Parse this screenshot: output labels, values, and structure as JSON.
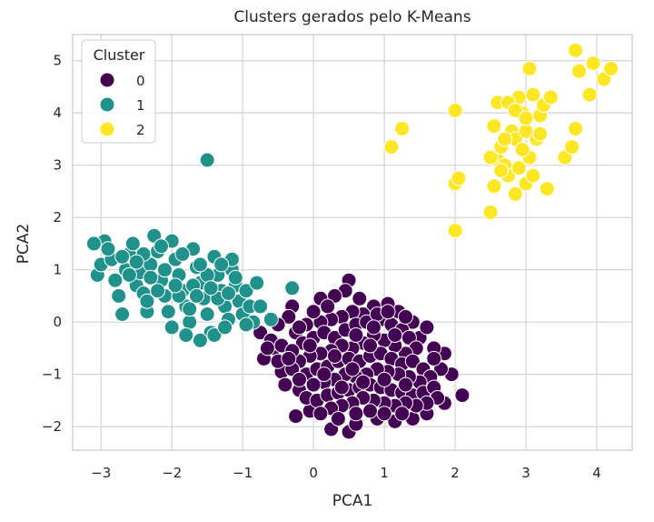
{
  "chart_data": {
    "type": "scatter",
    "title": "Clusters gerados pelo K-Means",
    "xlabel": "PCA1",
    "ylabel": "PCA2",
    "xlim": [
      -3.4,
      4.5
    ],
    "ylim": [
      -2.45,
      5.5
    ],
    "xticks": [
      -3,
      -2,
      -1,
      0,
      1,
      2,
      3,
      4
    ],
    "yticks": [
      -2,
      -1,
      0,
      1,
      2,
      3,
      4,
      5
    ],
    "xtick_labels": [
      "−3",
      "−2",
      "−1",
      "0",
      "1",
      "2",
      "3",
      "4"
    ],
    "ytick_labels": [
      "−2",
      "−1",
      "0",
      "1",
      "2",
      "3",
      "4",
      "5"
    ],
    "grid": true,
    "legend": {
      "title": "Cluster",
      "location": "upper-left",
      "entries": [
        "0",
        "1",
        "2"
      ]
    },
    "colors": {
      "0": "#440154",
      "1": "#21918c",
      "2": "#fde725",
      "grid": "#d3d3d3",
      "frame": "#cccccc"
    },
    "series": [
      {
        "name": "0",
        "points": [
          [
            0.5,
            0.8
          ],
          [
            0.45,
            0.6
          ],
          [
            0.3,
            0.5
          ],
          [
            0.1,
            0.45
          ],
          [
            -0.3,
            0.3
          ],
          [
            -0.35,
            0.1
          ],
          [
            -0.5,
            -0.05
          ],
          [
            -0.55,
            -0.5
          ],
          [
            -0.7,
            -0.7
          ],
          [
            -0.45,
            -0.95
          ],
          [
            -0.4,
            -1.2
          ],
          [
            -0.2,
            -1.3
          ],
          [
            -0.25,
            -1.8
          ],
          [
            -0.05,
            -1.7
          ],
          [
            0.25,
            -2.05
          ],
          [
            0.5,
            -2.1
          ],
          [
            0.6,
            -1.95
          ],
          [
            0.9,
            -1.85
          ],
          [
            1.15,
            -1.9
          ],
          [
            1.4,
            -1.85
          ],
          [
            1.6,
            -1.75
          ],
          [
            1.85,
            -1.55
          ],
          [
            2.1,
            -1.4
          ],
          [
            1.95,
            -1.0
          ],
          [
            1.8,
            -0.9
          ],
          [
            1.85,
            -0.6
          ],
          [
            1.7,
            -0.5
          ],
          [
            1.5,
            -0.3
          ],
          [
            1.6,
            -0.1
          ],
          [
            1.4,
            0.0
          ],
          [
            1.2,
            0.2
          ],
          [
            1.05,
            0.35
          ],
          [
            0.85,
            0.3
          ],
          [
            0.7,
            0.15
          ],
          [
            0.55,
            0.2
          ],
          [
            0.4,
            0.1
          ],
          [
            0.25,
            0.05
          ],
          [
            0.1,
            0.0
          ],
          [
            -0.1,
            -0.05
          ],
          [
            -0.25,
            -0.2
          ],
          [
            -0.15,
            -0.4
          ],
          [
            0.0,
            -0.3
          ],
          [
            0.15,
            -0.2
          ],
          [
            0.3,
            -0.3
          ],
          [
            0.45,
            -0.15
          ],
          [
            0.6,
            -0.05
          ],
          [
            0.75,
            0.0
          ],
          [
            0.95,
            0.05
          ],
          [
            1.1,
            -0.05
          ],
          [
            1.25,
            -0.15
          ],
          [
            1.35,
            -0.3
          ],
          [
            1.45,
            -0.5
          ],
          [
            1.3,
            -0.6
          ],
          [
            1.15,
            -0.45
          ],
          [
            1.0,
            -0.35
          ],
          [
            0.85,
            -0.25
          ],
          [
            0.7,
            -0.4
          ],
          [
            0.55,
            -0.5
          ],
          [
            0.4,
            -0.45
          ],
          [
            0.25,
            -0.55
          ],
          [
            0.1,
            -0.6
          ],
          [
            -0.05,
            -0.65
          ],
          [
            -0.2,
            -0.75
          ],
          [
            -0.3,
            -0.9
          ],
          [
            -0.1,
            -1.0
          ],
          [
            0.05,
            -0.9
          ],
          [
            0.2,
            -0.85
          ],
          [
            0.35,
            -0.75
          ],
          [
            0.5,
            -0.7
          ],
          [
            0.65,
            -0.75
          ],
          [
            0.8,
            -0.65
          ],
          [
            0.95,
            -0.6
          ],
          [
            1.1,
            -0.7
          ],
          [
            1.25,
            -0.8
          ],
          [
            1.4,
            -0.75
          ],
          [
            1.55,
            -0.9
          ],
          [
            1.65,
            -1.05
          ],
          [
            1.5,
            -1.15
          ],
          [
            1.35,
            -1.05
          ],
          [
            1.2,
            -1.0
          ],
          [
            1.05,
            -0.95
          ],
          [
            0.9,
            -0.9
          ],
          [
            0.75,
            -1.0
          ],
          [
            0.6,
            -1.05
          ],
          [
            0.45,
            -1.0
          ],
          [
            0.3,
            -1.1
          ],
          [
            0.15,
            -1.15
          ],
          [
            0.0,
            -1.2
          ],
          [
            -0.1,
            -1.45
          ],
          [
            0.05,
            -1.5
          ],
          [
            0.2,
            -1.4
          ],
          [
            0.35,
            -1.35
          ],
          [
            0.5,
            -1.3
          ],
          [
            0.65,
            -1.25
          ],
          [
            0.8,
            -1.2
          ],
          [
            0.95,
            -1.25
          ],
          [
            1.1,
            -1.3
          ],
          [
            1.25,
            -1.35
          ],
          [
            1.4,
            -1.4
          ],
          [
            1.55,
            -1.35
          ],
          [
            1.7,
            -1.25
          ],
          [
            1.75,
            -1.45
          ],
          [
            1.6,
            -1.55
          ],
          [
            1.45,
            -1.6
          ],
          [
            1.3,
            -1.55
          ],
          [
            1.15,
            -1.6
          ],
          [
            1.0,
            -1.55
          ],
          [
            0.85,
            -1.5
          ],
          [
            0.7,
            -1.45
          ],
          [
            0.55,
            -1.55
          ],
          [
            0.4,
            -1.6
          ],
          [
            0.25,
            -1.65
          ],
          [
            0.1,
            -1.75
          ],
          [
            0.35,
            -1.85
          ],
          [
            0.6,
            -1.75
          ],
          [
            0.8,
            -1.7
          ],
          [
            1.0,
            -1.75
          ],
          [
            1.25,
            -1.75
          ],
          [
            -0.75,
            -0.2
          ],
          [
            -0.6,
            -0.35
          ],
          [
            -0.45,
            -0.45
          ],
          [
            -0.3,
            -0.55
          ],
          [
            -0.5,
            -0.75
          ],
          [
            -0.65,
            -0.5
          ],
          [
            -0.2,
            -0.1
          ],
          [
            0.0,
            0.2
          ],
          [
            0.2,
            0.3
          ],
          [
            0.65,
            0.45
          ],
          [
            0.9,
            0.15
          ],
          [
            1.3,
            0.1
          ],
          [
            1.05,
            0.2
          ],
          [
            0.3,
            -0.65
          ],
          [
            0.55,
            -0.9
          ],
          [
            0.8,
            -0.45
          ],
          [
            1.15,
            -0.25
          ],
          [
            -0.05,
            -0.45
          ],
          [
            0.15,
            -1.0
          ],
          [
            0.4,
            -1.25
          ],
          [
            0.7,
            -1.15
          ],
          [
            1.0,
            -1.1
          ],
          [
            1.3,
            -1.2
          ],
          [
            -0.2,
            -1.1
          ],
          [
            -0.35,
            -0.7
          ],
          [
            0.85,
            -0.1
          ],
          [
            0.6,
            -0.25
          ],
          [
            1.7,
            -0.7
          ]
        ]
      },
      {
        "name": "1",
        "points": [
          [
            -1.5,
            3.1
          ],
          [
            -3.05,
            0.9
          ],
          [
            -3.0,
            1.1
          ],
          [
            -2.95,
            1.55
          ],
          [
            -2.85,
            1.2
          ],
          [
            -2.8,
            0.8
          ],
          [
            -2.75,
            0.5
          ],
          [
            -2.7,
            0.15
          ],
          [
            -2.65,
            1.0
          ],
          [
            -2.6,
            1.3
          ],
          [
            -2.55,
            1.5
          ],
          [
            -2.5,
            0.7
          ],
          [
            -2.45,
            0.95
          ],
          [
            -2.4,
            0.55
          ],
          [
            -2.35,
            0.2
          ],
          [
            -2.3,
            1.1
          ],
          [
            -2.25,
            1.65
          ],
          [
            -2.2,
            1.35
          ],
          [
            -2.15,
            0.8
          ],
          [
            -2.1,
            0.5
          ],
          [
            -2.05,
            0.2
          ],
          [
            -2.0,
            1.55
          ],
          [
            -1.95,
            1.2
          ],
          [
            -1.9,
            0.9
          ],
          [
            -1.85,
            0.6
          ],
          [
            -1.8,
            0.3
          ],
          [
            -1.75,
            0.0
          ],
          [
            -1.7,
            1.4
          ],
          [
            -1.65,
            1.05
          ],
          [
            -1.6,
            0.75
          ],
          [
            -1.55,
            0.45
          ],
          [
            -1.5,
            0.15
          ],
          [
            -1.45,
            -0.2
          ],
          [
            -1.4,
            1.25
          ],
          [
            -1.35,
            0.9
          ],
          [
            -1.3,
            0.6
          ],
          [
            -1.25,
            0.3
          ],
          [
            -1.2,
            0.05
          ],
          [
            -1.15,
            1.0
          ],
          [
            -1.1,
            0.7
          ],
          [
            -1.05,
            0.4
          ],
          [
            -1.0,
            0.15
          ],
          [
            -0.95,
            0.6
          ],
          [
            -0.9,
            0.3
          ],
          [
            -0.85,
            0.0
          ],
          [
            -0.8,
            0.75
          ],
          [
            -0.75,
            0.3
          ],
          [
            -0.3,
            0.65
          ],
          [
            -0.6,
            0.05
          ],
          [
            -1.15,
            1.2
          ],
          [
            -1.6,
            -0.35
          ],
          [
            -1.8,
            -0.25
          ],
          [
            -2.0,
            -0.1
          ],
          [
            -1.4,
            -0.25
          ],
          [
            -2.9,
            1.4
          ],
          [
            -3.1,
            1.5
          ],
          [
            -2.2,
            0.6
          ],
          [
            -2.6,
            0.9
          ],
          [
            -2.4,
            1.3
          ],
          [
            -1.9,
            0.5
          ],
          [
            -1.7,
            0.7
          ],
          [
            -1.5,
            0.9
          ],
          [
            -1.3,
            1.1
          ],
          [
            -1.1,
            0.85
          ],
          [
            -2.1,
            1.0
          ],
          [
            -1.85,
            1.3
          ],
          [
            -1.6,
            1.1
          ],
          [
            -1.35,
            0.45
          ],
          [
            -1.75,
            0.25
          ],
          [
            -1.95,
            0.7
          ],
          [
            -2.3,
            0.85
          ],
          [
            -2.5,
            1.15
          ],
          [
            -2.7,
            1.25
          ],
          [
            -1.2,
            0.55
          ],
          [
            -1.45,
            0.65
          ],
          [
            -1.65,
            0.5
          ],
          [
            -1.25,
            -0.1
          ],
          [
            -0.95,
            -0.05
          ],
          [
            -2.15,
            1.45
          ],
          [
            -2.35,
            0.4
          ]
        ]
      },
      {
        "name": "2",
        "points": [
          [
            1.1,
            3.35
          ],
          [
            1.25,
            3.7
          ],
          [
            2.0,
            4.05
          ],
          [
            2.0,
            2.65
          ],
          [
            2.05,
            2.75
          ],
          [
            2.0,
            1.75
          ],
          [
            2.5,
            2.1
          ],
          [
            2.55,
            2.6
          ],
          [
            2.6,
            3.1
          ],
          [
            2.65,
            3.35
          ],
          [
            2.6,
            4.2
          ],
          [
            2.7,
            3.0
          ],
          [
            2.75,
            2.8
          ],
          [
            2.8,
            3.65
          ],
          [
            2.85,
            2.45
          ],
          [
            2.85,
            3.5
          ],
          [
            2.9,
            4.3
          ],
          [
            2.9,
            2.95
          ],
          [
            2.95,
            4.0
          ],
          [
            3.0,
            3.65
          ],
          [
            3.0,
            2.65
          ],
          [
            3.05,
            4.85
          ],
          [
            3.05,
            3.15
          ],
          [
            3.1,
            4.35
          ],
          [
            3.1,
            2.8
          ],
          [
            3.15,
            3.5
          ],
          [
            3.2,
            3.95
          ],
          [
            3.25,
            4.15
          ],
          [
            3.3,
            2.55
          ],
          [
            3.35,
            4.3
          ],
          [
            3.55,
            3.15
          ],
          [
            3.65,
            3.35
          ],
          [
            3.7,
            5.2
          ],
          [
            3.75,
            4.8
          ],
          [
            3.9,
            4.35
          ],
          [
            3.95,
            4.95
          ],
          [
            4.1,
            4.65
          ],
          [
            4.2,
            4.85
          ],
          [
            3.7,
            3.7
          ],
          [
            2.5,
            3.15
          ],
          [
            2.7,
            3.5
          ],
          [
            2.95,
            3.3
          ],
          [
            3.2,
            3.6
          ],
          [
            2.75,
            4.2
          ],
          [
            2.55,
            3.75
          ],
          [
            2.85,
            4.05
          ],
          [
            3.0,
            3.9
          ],
          [
            2.65,
            2.9
          ]
        ]
      }
    ]
  }
}
